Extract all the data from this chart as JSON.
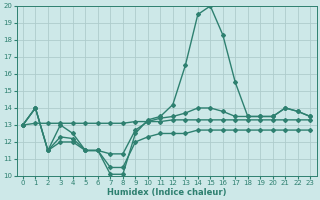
{
  "xlabel": "Humidex (Indice chaleur)",
  "xlim": [
    -0.5,
    23.5
  ],
  "ylim": [
    10,
    20
  ],
  "xticks": [
    0,
    1,
    2,
    3,
    4,
    5,
    6,
    7,
    8,
    9,
    10,
    11,
    12,
    13,
    14,
    15,
    16,
    17,
    18,
    19,
    20,
    21,
    22,
    23
  ],
  "yticks": [
    10,
    11,
    12,
    13,
    14,
    15,
    16,
    17,
    18,
    19,
    20
  ],
  "line_color": "#2e8070",
  "bg_color": "#cde8e8",
  "grid_color": "#aecccc",
  "line_peak_x": [
    0,
    1,
    2,
    3,
    4,
    5,
    6,
    7,
    8,
    9,
    10,
    11,
    12,
    13,
    14,
    15,
    16,
    17,
    18,
    19,
    20,
    21,
    22,
    23
  ],
  "line_peak_y": [
    13,
    14,
    11.5,
    12.3,
    12.2,
    11.5,
    11.5,
    10.1,
    10.1,
    12.5,
    13.3,
    13.5,
    14.2,
    16.5,
    19.5,
    20.0,
    18.3,
    15.5,
    13.5,
    13.5,
    13.5,
    14.0,
    13.8,
    13.5
  ],
  "line_upper_x": [
    0,
    1,
    2,
    3,
    4,
    5,
    6,
    7,
    8,
    9,
    10,
    11,
    12,
    13,
    14,
    15,
    16,
    17,
    18,
    19,
    20,
    21,
    22,
    23
  ],
  "line_upper_y": [
    13,
    14,
    11.5,
    13.0,
    12.5,
    11.5,
    11.5,
    11.3,
    11.3,
    12.7,
    13.2,
    13.4,
    13.5,
    13.7,
    14.0,
    14.0,
    13.8,
    13.5,
    13.5,
    13.5,
    13.5,
    14.0,
    13.8,
    13.5
  ],
  "line_lower_x": [
    0,
    1,
    2,
    3,
    4,
    5,
    6,
    7,
    8,
    9,
    10,
    11,
    12,
    13,
    14,
    15,
    16,
    17,
    18,
    19,
    20,
    21,
    22,
    23
  ],
  "line_lower_y": [
    13,
    14,
    11.5,
    12.0,
    12.0,
    11.5,
    11.5,
    10.5,
    10.5,
    12.0,
    12.3,
    12.5,
    12.5,
    12.5,
    12.7,
    12.7,
    12.7,
    12.7,
    12.7,
    12.7,
    12.7,
    12.7,
    12.7,
    12.7
  ],
  "line_flat_x": [
    0,
    1,
    2,
    3,
    4,
    5,
    6,
    7,
    8,
    9,
    10,
    11,
    12,
    13,
    14,
    15,
    16,
    17,
    18,
    19,
    20,
    21,
    22,
    23
  ],
  "line_flat_y": [
    13,
    13.1,
    13.1,
    13.1,
    13.1,
    13.1,
    13.1,
    13.1,
    13.1,
    13.2,
    13.2,
    13.2,
    13.3,
    13.3,
    13.3,
    13.3,
    13.3,
    13.3,
    13.3,
    13.3,
    13.3,
    13.3,
    13.3,
    13.3
  ],
  "marker": "D",
  "markersize": 2.0,
  "linewidth": 1.0,
  "tick_fontsize": 5.0,
  "xlabel_fontsize": 6.0
}
